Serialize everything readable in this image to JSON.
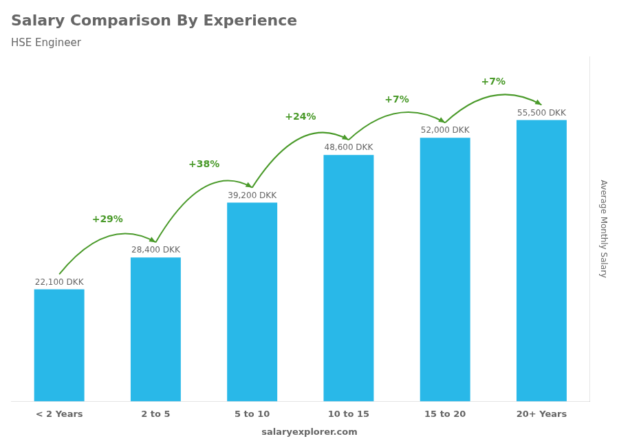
{
  "chart_data": {
    "type": "bar",
    "title": "Salary Comparison By Experience",
    "subtitle": "HSE Engineer",
    "categories": [
      "< 2 Years",
      "2 to 5",
      "5 to 10",
      "10 to 15",
      "15 to 20",
      "20+ Years"
    ],
    "values": [
      22100,
      28400,
      39200,
      48600,
      52000,
      55500
    ],
    "value_labels": [
      "22,100 DKK",
      "28,400 DKK",
      "39,200 DKK",
      "48,600 DKK",
      "52,000 DKK",
      "55,500 DKK"
    ],
    "data_labels": true,
    "color": "#29B8E8",
    "ylabel": "Average Monthly Salary",
    "ylim": [
      0,
      68000
    ],
    "yticks": [],
    "tick_labels": "x",
    "grid": false,
    "annotations": [
      {
        "text": "+29%",
        "from": "< 2 Years",
        "to": "2 to 5"
      },
      {
        "text": "+38%",
        "from": "2 to 5",
        "to": "5 to 10"
      },
      {
        "text": "+24%",
        "from": "5 to 10",
        "to": "10 to 15"
      },
      {
        "text": "+7%",
        "from": "10 to 15",
        "to": "15 to 20"
      },
      {
        "text": "+7%",
        "from": "15 to 20",
        "to": "20+ Years"
      },
      {
        "text": "salaryexplorer.com"
      }
    ]
  }
}
